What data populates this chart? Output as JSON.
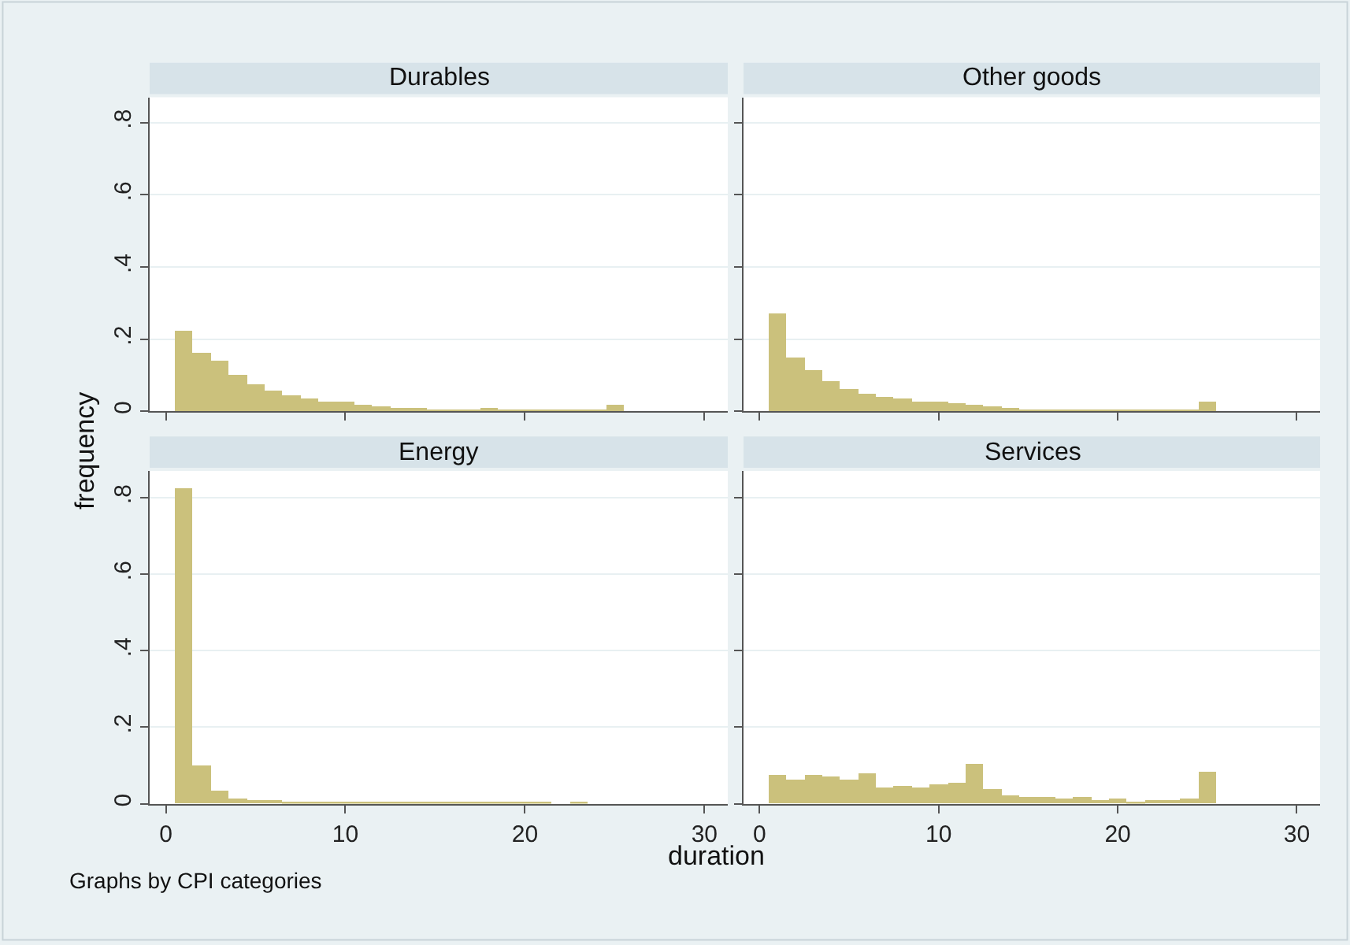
{
  "chart_data": [
    {
      "type": "histogram",
      "title": "Durables",
      "ylabel": "frequency",
      "color": "#cbc17c",
      "bins": [
        0.5,
        1.5,
        2.5,
        3.5,
        4.5,
        5.5,
        6.5,
        7.5,
        8.5,
        9.5,
        10.5,
        11.5,
        12.5,
        13.5,
        14.5,
        15.5,
        16.5,
        17.5,
        18.5,
        19.5,
        20.5,
        21.5,
        22.5,
        23.5,
        24.5,
        25.5
      ],
      "values": [
        0.223,
        0.163,
        0.142,
        0.1,
        0.074,
        0.057,
        0.045,
        0.038,
        0.029,
        0.026,
        0.02,
        0.016,
        0.012,
        0.012,
        0.007,
        0.007,
        0.007,
        0.009,
        0.004,
        0.004,
        0.004,
        0.004,
        0.004,
        0.003,
        0.02
      ],
      "xlim": [
        -0.9,
        31.3
      ],
      "ylim": [
        0,
        0.87
      ],
      "xticks": [
        {
          "value": 0,
          "label": null
        },
        {
          "value": 10,
          "label": null
        },
        {
          "value": 20,
          "label": null
        },
        {
          "value": 30,
          "label": null
        }
      ],
      "yticks": [
        0,
        {
          "value": 0.2,
          "label": ".2"
        },
        {
          "value": 0.4,
          "label": ".4"
        },
        {
          "value": 0.6,
          "label": ".6"
        },
        {
          "value": 0.8,
          "label": ".8"
        }
      ],
      "grid": "y",
      "tick_labels": "y"
    },
    {
      "type": "histogram",
      "title": "Other goods",
      "color": "#cbc17c",
      "bins": [
        0.5,
        1.5,
        2.5,
        3.5,
        4.5,
        5.5,
        6.5,
        7.5,
        8.5,
        9.5,
        10.5,
        11.5,
        12.5,
        13.5,
        14.5,
        15.5,
        16.5,
        17.5,
        18.5,
        19.5,
        20.5,
        21.5,
        22.5,
        23.5,
        24.5,
        25.5
      ],
      "values": [
        0.27,
        0.149,
        0.117,
        0.083,
        0.061,
        0.051,
        0.041,
        0.035,
        0.029,
        0.028,
        0.022,
        0.018,
        0.013,
        0.01,
        0.007,
        0.007,
        0.006,
        0.007,
        0.003,
        0.003,
        0.003,
        0.003,
        0.003,
        0.003,
        0.028
      ],
      "xlim": [
        -0.9,
        31.3
      ],
      "ylim": [
        0,
        0.87
      ],
      "xticks": [
        {
          "value": 0,
          "label": null
        },
        {
          "value": 10,
          "label": null
        },
        {
          "value": 20,
          "label": null
        },
        {
          "value": 30,
          "label": null
        }
      ],
      "yticks": [
        {
          "value": 0,
          "label": null
        },
        {
          "value": 0.2,
          "label": null
        },
        {
          "value": 0.4,
          "label": null
        },
        {
          "value": 0.6,
          "label": null
        },
        {
          "value": 0.8,
          "label": null
        }
      ],
      "grid": "y",
      "tick_labels": false
    },
    {
      "type": "histogram",
      "title": "Energy",
      "xlabel": "duration",
      "color": "#cbc17c",
      "bins": [
        0.5,
        1.5,
        2.5,
        3.5,
        4.5,
        5.5,
        6.5,
        7.5,
        8.5,
        9.5,
        10.5,
        11.5,
        12.5,
        13.5,
        14.5,
        15.5,
        16.5,
        17.5,
        18.5,
        19.5,
        20.5,
        21.5,
        22.5,
        23.5,
        24.5,
        25.5
      ],
      "values": [
        0.826,
        0.1,
        0.036,
        0.015,
        0.01,
        0.009,
        0.006,
        0.003,
        0.003,
        0.003,
        0.003,
        0.006,
        0.003,
        0.003,
        0.003,
        0.003,
        0.003,
        0.003,
        0.003,
        0.003,
        0.003,
        0,
        0.003,
        0,
        0
      ],
      "xlim": [
        -0.9,
        31.3
      ],
      "ylim": [
        0,
        0.87
      ],
      "xticks": [
        0,
        10,
        20,
        30
      ],
      "yticks": [
        0,
        {
          "value": 0.2,
          "label": ".2"
        },
        {
          "value": 0.4,
          "label": ".4"
        },
        {
          "value": 0.6,
          "label": ".6"
        },
        {
          "value": 0.8,
          "label": ".8"
        }
      ],
      "grid": "y"
    },
    {
      "type": "histogram",
      "title": "Services",
      "annotations": [
        "Graphs by CPI categories"
      ],
      "color": "#cbc17c",
      "bins": [
        0.5,
        1.5,
        2.5,
        3.5,
        4.5,
        5.5,
        6.5,
        7.5,
        8.5,
        9.5,
        10.5,
        11.5,
        12.5,
        13.5,
        14.5,
        15.5,
        16.5,
        17.5,
        18.5,
        19.5,
        20.5,
        21.5,
        22.5,
        23.5,
        24.5,
        25.5
      ],
      "values": [
        0.077,
        0.061,
        0.075,
        0.07,
        0.065,
        0.08,
        0.043,
        0.046,
        0.042,
        0.049,
        0.054,
        0.104,
        0.038,
        0.023,
        0.019,
        0.016,
        0.014,
        0.019,
        0.01,
        0.012,
        0.007,
        0.009,
        0.01,
        0.014,
        0.083
      ],
      "xlim": [
        -0.9,
        31.3
      ],
      "ylim": [
        0,
        0.87
      ],
      "xticks": [
        0,
        10,
        20,
        30
      ],
      "yticks": [
        {
          "value": 0,
          "label": null
        },
        {
          "value": 0.2,
          "label": null
        },
        {
          "value": 0.4,
          "label": null
        },
        {
          "value": 0.6,
          "label": null
        },
        {
          "value": 0.8,
          "label": null
        }
      ],
      "grid": "y",
      "tick_labels": "x"
    }
  ]
}
